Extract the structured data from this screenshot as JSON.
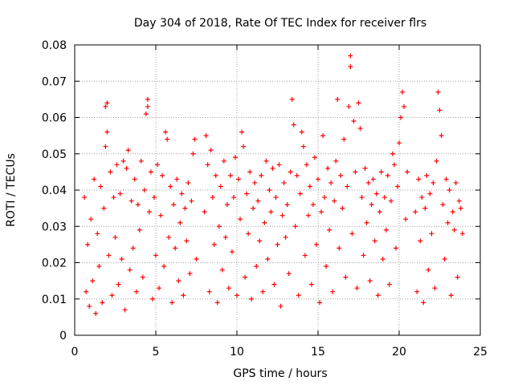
{
  "chart_data": {
    "type": "scatter",
    "title": "Day 304 of 2018, Rate Of TEC Index for receiver flrs",
    "xlabel": "GPS time / hours",
    "ylabel": "ROTI / TECUs",
    "xlim": [
      0,
      25
    ],
    "ylim": [
      0,
      0.08
    ],
    "xticks": [
      "0",
      "5",
      "10",
      "15",
      "20",
      "25"
    ],
    "yticks": [
      "0",
      "0.01",
      "0.02",
      "0.03",
      "0.04",
      "0.05",
      "0.06",
      "0.07",
      "0.08"
    ],
    "xtick_values": [
      0,
      5,
      10,
      15,
      20,
      25
    ],
    "ytick_values": [
      0,
      0.01,
      0.02,
      0.03,
      0.04,
      0.05,
      0.06,
      0.07,
      0.08
    ],
    "grid": true,
    "marker": "+",
    "color": "#ff0000",
    "data_gaps_hours": [
      [
        7.6,
        7.9
      ],
      [
        20.6,
        20.9
      ]
    ],
    "series": [
      {
        "points": [
          [
            0.6,
            0.038
          ],
          [
            0.7,
            0.012
          ],
          [
            0.8,
            0.025
          ],
          [
            0.9,
            0.008
          ],
          [
            1.0,
            0.032
          ],
          [
            1.1,
            0.015
          ],
          [
            1.2,
            0.043
          ],
          [
            1.3,
            0.006
          ],
          [
            1.4,
            0.028
          ],
          [
            1.5,
            0.019
          ],
          [
            1.6,
            0.041
          ],
          [
            1.7,
            0.009
          ],
          [
            1.8,
            0.035
          ],
          [
            1.9,
            0.052
          ],
          [
            1.9,
            0.063
          ],
          [
            2.0,
            0.064
          ],
          [
            2.0,
            0.056
          ],
          [
            2.1,
            0.022
          ],
          [
            2.2,
            0.045
          ],
          [
            2.3,
            0.011
          ],
          [
            2.4,
            0.038
          ],
          [
            2.5,
            0.027
          ],
          [
            2.6,
            0.047
          ],
          [
            2.7,
            0.014
          ],
          [
            2.8,
            0.039
          ],
          [
            2.9,
            0.021
          ],
          [
            3.0,
            0.048
          ],
          [
            3.1,
            0.007
          ],
          [
            3.2,
            0.046
          ],
          [
            3.3,
            0.051
          ],
          [
            3.4,
            0.018
          ],
          [
            3.5,
            0.037
          ],
          [
            3.6,
            0.024
          ],
          [
            3.7,
            0.043
          ],
          [
            3.8,
            0.012
          ],
          [
            3.9,
            0.036
          ],
          [
            4.0,
            0.029
          ],
          [
            4.1,
            0.048
          ],
          [
            4.2,
            0.016
          ],
          [
            4.3,
            0.04
          ],
          [
            4.4,
            0.061
          ],
          [
            4.5,
            0.065
          ],
          [
            4.5,
            0.063
          ],
          [
            4.6,
            0.034
          ],
          [
            4.7,
            0.045
          ],
          [
            4.8,
            0.01
          ],
          [
            4.9,
            0.038
          ],
          [
            5.0,
            0.022
          ],
          [
            5.1,
            0.047
          ],
          [
            5.2,
            0.013
          ],
          [
            5.3,
            0.033
          ],
          [
            5.4,
            0.044
          ],
          [
            5.5,
            0.019
          ],
          [
            5.6,
            0.056
          ],
          [
            5.7,
            0.054
          ],
          [
            5.8,
            0.027
          ],
          [
            5.9,
            0.041
          ],
          [
            6.0,
            0.009
          ],
          [
            6.1,
            0.036
          ],
          [
            6.2,
            0.024
          ],
          [
            6.3,
            0.043
          ],
          [
            6.4,
            0.015
          ],
          [
            6.5,
            0.031
          ],
          [
            6.6,
            0.039
          ],
          [
            6.7,
            0.011
          ],
          [
            6.8,
            0.035
          ],
          [
            6.9,
            0.026
          ],
          [
            7.0,
            0.042
          ],
          [
            7.1,
            0.017
          ],
          [
            7.2,
            0.037
          ],
          [
            7.3,
            0.05
          ],
          [
            7.4,
            0.054
          ],
          [
            7.5,
            0.021
          ],
          [
            8.0,
            0.034
          ],
          [
            8.1,
            0.055
          ],
          [
            8.2,
            0.047
          ],
          [
            8.3,
            0.012
          ],
          [
            8.4,
            0.051
          ],
          [
            8.5,
            0.038
          ],
          [
            8.6,
            0.025
          ],
          [
            8.7,
            0.044
          ],
          [
            8.8,
            0.009
          ],
          [
            8.9,
            0.03
          ],
          [
            9.0,
            0.041
          ],
          [
            9.1,
            0.018
          ],
          [
            9.2,
            0.048
          ],
          [
            9.3,
            0.027
          ],
          [
            9.4,
            0.036
          ],
          [
            9.5,
            0.013
          ],
          [
            9.6,
            0.044
          ],
          [
            9.7,
            0.023
          ],
          [
            9.8,
            0.038
          ],
          [
            9.9,
            0.049
          ],
          [
            10.0,
            0.011
          ],
          [
            10.1,
            0.043
          ],
          [
            10.2,
            0.032
          ],
          [
            10.3,
            0.056
          ],
          [
            10.4,
            0.052
          ],
          [
            10.5,
            0.016
          ],
          [
            10.6,
            0.039
          ],
          [
            10.7,
            0.028
          ],
          [
            10.8,
            0.045
          ],
          [
            10.9,
            0.01
          ],
          [
            11.0,
            0.035
          ],
          [
            11.1,
            0.042
          ],
          [
            11.2,
            0.019
          ],
          [
            11.3,
            0.037
          ],
          [
            11.4,
            0.026
          ],
          [
            11.5,
            0.044
          ],
          [
            11.6,
            0.012
          ],
          [
            11.7,
            0.031
          ],
          [
            11.8,
            0.048
          ],
          [
            11.9,
            0.021
          ],
          [
            12.0,
            0.04
          ],
          [
            12.1,
            0.034
          ],
          [
            12.2,
            0.046
          ],
          [
            12.3,
            0.014
          ],
          [
            12.4,
            0.038
          ],
          [
            12.5,
            0.025
          ],
          [
            12.6,
            0.047
          ],
          [
            12.7,
            0.008
          ],
          [
            12.8,
            0.033
          ],
          [
            12.9,
            0.042
          ],
          [
            13.0,
            0.027
          ],
          [
            13.1,
            0.036
          ],
          [
            13.2,
            0.017
          ],
          [
            13.3,
            0.045
          ],
          [
            13.4,
            0.065
          ],
          [
            13.5,
            0.058
          ],
          [
            13.6,
            0.03
          ],
          [
            13.7,
            0.044
          ],
          [
            13.8,
            0.011
          ],
          [
            13.9,
            0.039
          ],
          [
            14.0,
            0.056
          ],
          [
            14.1,
            0.052
          ],
          [
            14.2,
            0.022
          ],
          [
            14.3,
            0.047
          ],
          [
            14.4,
            0.033
          ],
          [
            14.5,
            0.041
          ],
          [
            14.6,
            0.014
          ],
          [
            14.7,
            0.036
          ],
          [
            14.8,
            0.049
          ],
          [
            14.9,
            0.025
          ],
          [
            15.0,
            0.043
          ],
          [
            15.1,
            0.009
          ],
          [
            15.2,
            0.034
          ],
          [
            15.3,
            0.055
          ],
          [
            15.4,
            0.038
          ],
          [
            15.5,
            0.019
          ],
          [
            15.6,
            0.046
          ],
          [
            15.7,
            0.029
          ],
          [
            15.8,
            0.042
          ],
          [
            15.9,
            0.012
          ],
          [
            16.0,
            0.037
          ],
          [
            16.1,
            0.048
          ],
          [
            16.2,
            0.065
          ],
          [
            16.3,
            0.024
          ],
          [
            16.4,
            0.044
          ],
          [
            16.5,
            0.035
          ],
          [
            16.6,
            0.054
          ],
          [
            16.7,
            0.016
          ],
          [
            16.8,
            0.041
          ],
          [
            16.9,
            0.063
          ],
          [
            17.0,
            0.074
          ],
          [
            17.0,
            0.077
          ],
          [
            17.1,
            0.028
          ],
          [
            17.2,
            0.059
          ],
          [
            17.3,
            0.045
          ],
          [
            17.4,
            0.013
          ],
          [
            17.5,
            0.064
          ],
          [
            17.6,
            0.057
          ],
          [
            17.7,
            0.038
          ],
          [
            17.8,
            0.022
          ],
          [
            17.9,
            0.046
          ],
          [
            18.0,
            0.031
          ],
          [
            18.1,
            0.042
          ],
          [
            18.2,
            0.015
          ],
          [
            18.3,
            0.036
          ],
          [
            18.4,
            0.043
          ],
          [
            18.5,
            0.026
          ],
          [
            18.6,
            0.039
          ],
          [
            18.7,
            0.011
          ],
          [
            18.8,
            0.034
          ],
          [
            18.9,
            0.045
          ],
          [
            19.0,
            0.021
          ],
          [
            19.1,
            0.038
          ],
          [
            19.2,
            0.029
          ],
          [
            19.3,
            0.044
          ],
          [
            19.4,
            0.014
          ],
          [
            19.5,
            0.037
          ],
          [
            19.6,
            0.05
          ],
          [
            19.7,
            0.047
          ],
          [
            19.8,
            0.024
          ],
          [
            19.9,
            0.041
          ],
          [
            20.0,
            0.053
          ],
          [
            20.1,
            0.06
          ],
          [
            20.2,
            0.067
          ],
          [
            20.3,
            0.063
          ],
          [
            20.4,
            0.032
          ],
          [
            20.5,
            0.045
          ],
          [
            21.0,
            0.034
          ],
          [
            21.1,
            0.012
          ],
          [
            21.2,
            0.043
          ],
          [
            21.3,
            0.026
          ],
          [
            21.4,
            0.038
          ],
          [
            21.5,
            0.009
          ],
          [
            21.6,
            0.035
          ],
          [
            21.7,
            0.044
          ],
          [
            21.8,
            0.018
          ],
          [
            21.9,
            0.039
          ],
          [
            22.0,
            0.028
          ],
          [
            22.1,
            0.042
          ],
          [
            22.2,
            0.013
          ],
          [
            22.3,
            0.048
          ],
          [
            22.4,
            0.067
          ],
          [
            22.5,
            0.062
          ],
          [
            22.6,
            0.055
          ],
          [
            22.7,
            0.036
          ],
          [
            22.8,
            0.021
          ],
          [
            22.9,
            0.043
          ],
          [
            23.0,
            0.031
          ],
          [
            23.1,
            0.04
          ],
          [
            23.2,
            0.011
          ],
          [
            23.3,
            0.034
          ],
          [
            23.4,
            0.029
          ],
          [
            23.5,
            0.042
          ],
          [
            23.6,
            0.016
          ],
          [
            23.7,
            0.037
          ],
          [
            23.8,
            0.035
          ],
          [
            23.9,
            0.028
          ]
        ]
      }
    ]
  }
}
